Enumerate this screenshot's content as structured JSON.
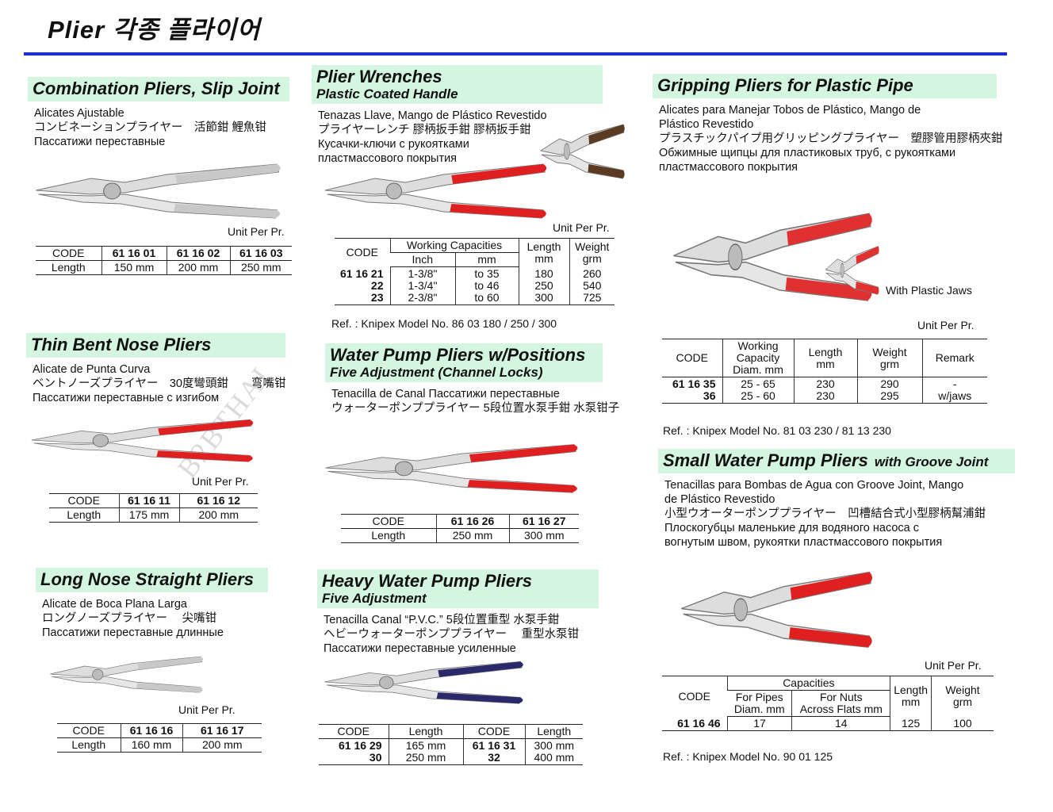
{
  "page": {
    "title": "Plier  각종 플라이어",
    "rule_color": "#1a2fc8",
    "header_bg": "#d4f5e0",
    "watermark": "B2BTHAI"
  },
  "sections": [
    {
      "id": "combo",
      "title": "Combination Pliers, Slip Joint",
      "lines": [
        "Alicates Ajustable",
        "コンビネーションプライヤー　活節鉗 鯉魚钳",
        "Пассатижи переставные"
      ],
      "handle_color": "#c8c8c8",
      "unit": "Unit Per Pr.",
      "table": [
        [
          {
            "t": "CODE"
          },
          {
            "t": "61 16 01",
            "b": 1
          },
          {
            "t": "61 16 02",
            "b": 1
          },
          {
            "t": "61 16 03",
            "b": 1
          }
        ],
        [
          {
            "t": "Length"
          },
          {
            "t": "150 mm"
          },
          {
            "t": "200 mm"
          },
          {
            "t": "250 mm"
          }
        ]
      ]
    },
    {
      "id": "wrench",
      "title": "Plier Wrenches",
      "subtitle": "Plastic Coated Handle",
      "lines": [
        "Tenazas Llave, Mango de Plástico Revestido",
        "プライヤーレンチ 膠柄扳手鉗 膠柄扳手鉗",
        "Кусачки-ключи с рукоятками",
        "пластмассового покрытия"
      ],
      "handle_color": "#e02020",
      "unit": "Unit Per Pr.",
      "table_head": [
        [
          {
            "t": "CODE",
            "rs": 2
          },
          {
            "t": "Working Capacities",
            "cs": 2
          },
          {
            "t": "Length\nmm",
            "rs": 2
          },
          {
            "t": "Weight\ngrm",
            "rs": 2
          }
        ],
        [
          {
            "t": "Inch"
          },
          {
            "t": "mm"
          }
        ]
      ],
      "table": [
        [
          {
            "t": "61 16 21\n22\n23",
            "b": 1
          },
          {
            "t": "1-3/8\"\n1-3/4\"\n2-3/8\""
          },
          {
            "t": "to 35\nto 46\nto 60"
          },
          {
            "t": "180\n250\n300"
          },
          {
            "t": "260\n540\n725"
          }
        ]
      ],
      "ref": "Ref. : Knipex Model No. 86 03 180 / 250 / 300"
    },
    {
      "id": "grip",
      "title": "Gripping Pliers for Plastic Pipe",
      "lines": [
        "Alicates para Manejar Tobos de Plástico, Mango de",
        "Plástico Revestido",
        "プラスチックパイプ用グリッピングプライヤー　塑膠管用膠柄夾鉗",
        "Обжимные щипцы для пластиковых труб, с рукоятками",
        "пластмассового покрытия"
      ],
      "handle_color": "#e03030",
      "image_caption": "With Plastic Jaws",
      "unit": "Unit Per Pr.",
      "table_head": [
        [
          {
            "t": "CODE"
          },
          {
            "t": "Working\nCapacity\nDiam. mm"
          },
          {
            "t": "Length\nmm"
          },
          {
            "t": "Weight\ngrm"
          },
          {
            "t": "Remark"
          }
        ]
      ],
      "table": [
        [
          {
            "t": "61 16 35\n36",
            "b": 1
          },
          {
            "t": "25 - 65\n25 - 60"
          },
          {
            "t": "230\n230"
          },
          {
            "t": "290\n295"
          },
          {
            "t": "-\nw/jaws"
          }
        ]
      ],
      "ref": "Ref. : Knipex Model No. 81 03 230 / 81 13 230"
    },
    {
      "id": "bent",
      "title": "Thin Bent Nose Pliers",
      "lines": [
        "Alicate de Punta Curva",
        "ベントノーズプライヤー　30度彎頭鉗　　弯嘴钳",
        "Пассатижи переставные с изгибом"
      ],
      "handle_color": "#e02020",
      "unit": "Unit Per Pr.",
      "table": [
        [
          {
            "t": "CODE"
          },
          {
            "t": "61 16 11",
            "b": 1
          },
          {
            "t": "61 16 12",
            "b": 1
          }
        ],
        [
          {
            "t": "Length"
          },
          {
            "t": "175 mm"
          },
          {
            "t": "200 mm"
          }
        ]
      ]
    },
    {
      "id": "pump",
      "title": "Water Pump Pliers w/Positions",
      "subtitle": "Five Adjustment  (Channel Locks)",
      "lines": [
        "Tenacilla de Canal  Пассатижи переставные",
        "ウォーターポンププライヤー  5段位置水泵手鉗  水泵钳子"
      ],
      "handle_color": "#e02020",
      "table": [
        [
          {
            "t": "CODE"
          },
          {
            "t": "61 16 26",
            "b": 1
          },
          {
            "t": "61 16 27",
            "b": 1
          }
        ],
        [
          {
            "t": "Length"
          },
          {
            "t": "250 mm"
          },
          {
            "t": "300 mm"
          }
        ]
      ]
    },
    {
      "id": "long",
      "title": "Long Nose Straight Pliers",
      "lines": [
        "Alicate de Boca Plana Larga",
        "ロングノーズプライヤー　 尖嘴钳",
        "Пассатижи переставные длинные"
      ],
      "handle_color": "#c8c8c8",
      "unit": "Unit Per Pr.",
      "table": [
        [
          {
            "t": "CODE"
          },
          {
            "t": "61 16 16",
            "b": 1
          },
          {
            "t": "61 16 17",
            "b": 1
          }
        ],
        [
          {
            "t": "Length"
          },
          {
            "t": "160 mm"
          },
          {
            "t": "200 mm"
          }
        ]
      ]
    },
    {
      "id": "heavy",
      "title": "Heavy Water Pump Pliers",
      "subtitle": "Five Adjustment",
      "lines": [
        "Tenacilla Canal “P.V.C.”  5段位置重型 水泵手鉗",
        "ヘビーウォーターポンププライヤー　 重型水泵钳",
        "Пассатижи переставные усиленные"
      ],
      "handle_color": "#2a2a6a",
      "table_head": [
        [
          {
            "t": "CODE"
          },
          {
            "t": "Length"
          },
          {
            "t": "CODE"
          },
          {
            "t": "Length"
          }
        ]
      ],
      "table": [
        [
          {
            "t": "61 16 29\n30",
            "b": 1
          },
          {
            "t": "165 mm\n250 mm"
          },
          {
            "t": "61 16 31\n32",
            "b": 1
          },
          {
            "t": "300 mm\n400 mm"
          }
        ]
      ]
    },
    {
      "id": "small",
      "title": "Small Water Pump Pliers",
      "title_extra": "with Groove Joint",
      "lines": [
        "Tenacillas para Bombas de Agua con Groove Joint, Mango",
        "de Plástico Revestido",
        "小型ウオーターポンププライヤー　凹槽結合式小型膠柄幫浦鉗",
        "Плоскогубцы маленькие для водяного насоса с",
        "вогнутым швом, рукоятки пластмассового покрытия"
      ],
      "handle_color": "#e02020",
      "unit": "Unit Per Pr.",
      "table_head": [
        [
          {
            "t": "CODE",
            "rs": 2
          },
          {
            "t": "Capacities",
            "cs": 2
          },
          {
            "t": "Length\nmm",
            "rs": 2
          },
          {
            "t": "Weight\ngrm",
            "rs": 2
          }
        ],
        [
          {
            "t": "For Pipes\nDiam. mm"
          },
          {
            "t": "For Nuts\nAcross Flats mm"
          }
        ]
      ],
      "table": [
        [
          {
            "t": "61 16 46",
            "b": 1
          },
          {
            "t": "17"
          },
          {
            "t": "14"
          },
          {
            "t": "125"
          },
          {
            "t": "100"
          }
        ]
      ],
      "ref": "Ref. : Knipex Model No. 90 01 125"
    }
  ]
}
